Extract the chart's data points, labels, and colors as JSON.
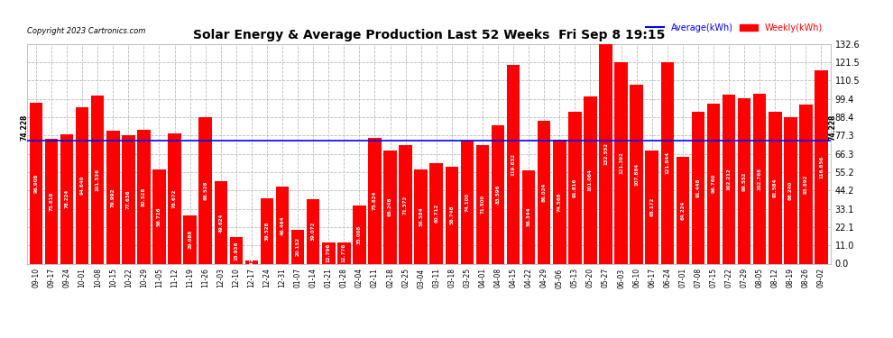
{
  "title": "Solar Energy & Average Production Last 52 Weeks  Fri Sep 8 19:15",
  "copyright": "Copyright 2023 Cartronics.com",
  "legend_average": "Average(kWh)",
  "legend_weekly": "Weekly(kWh)",
  "average_value": 74.228,
  "bar_color": "#ff0000",
  "average_line_color": "#0000ff",
  "background_color": "#ffffff",
  "plot_bg_color": "#ffffff",
  "grid_color": "#bbbbbb",
  "ylim": [
    0.0,
    132.6
  ],
  "yticks": [
    0.0,
    11.0,
    22.1,
    33.1,
    44.2,
    55.2,
    66.3,
    77.3,
    88.4,
    99.4,
    110.5,
    121.5,
    132.6
  ],
  "categories": [
    "09-10",
    "09-17",
    "09-24",
    "10-01",
    "10-08",
    "10-15",
    "10-22",
    "10-29",
    "11-05",
    "11-12",
    "11-19",
    "11-26",
    "12-03",
    "12-10",
    "12-17",
    "12-24",
    "12-31",
    "01-07",
    "01-14",
    "01-21",
    "01-28",
    "02-04",
    "02-11",
    "02-18",
    "02-25",
    "03-04",
    "03-11",
    "03-18",
    "03-25",
    "04-01",
    "04-08",
    "04-15",
    "04-22",
    "04-29",
    "05-06",
    "05-13",
    "05-20",
    "05-27",
    "06-03",
    "06-10",
    "06-17",
    "06-24",
    "07-01",
    "07-08",
    "07-15",
    "07-22",
    "07-29",
    "08-05",
    "08-12",
    "08-19",
    "08-26",
    "09-02"
  ],
  "values": [
    96.908,
    75.616,
    78.224,
    94.64,
    101.536,
    79.992,
    77.636,
    80.528,
    56.716,
    78.672,
    29.088,
    88.528,
    49.624,
    15.936,
    1.928,
    39.528,
    46.464,
    20.152,
    39.072,
    12.796,
    12.776,
    35.008,
    75.824,
    68.248,
    71.372,
    56.584,
    60.712,
    58.748,
    74.1,
    71.5,
    83.596,
    119.832,
    56.344,
    86.024,
    74.568,
    91.816,
    101.064,
    132.552,
    121.392,
    107.884,
    68.172,
    121.844,
    64.224,
    91.448,
    96.76,
    102.212,
    99.552,
    102.768,
    91.584,
    88.24,
    95.892,
    116.856
  ]
}
